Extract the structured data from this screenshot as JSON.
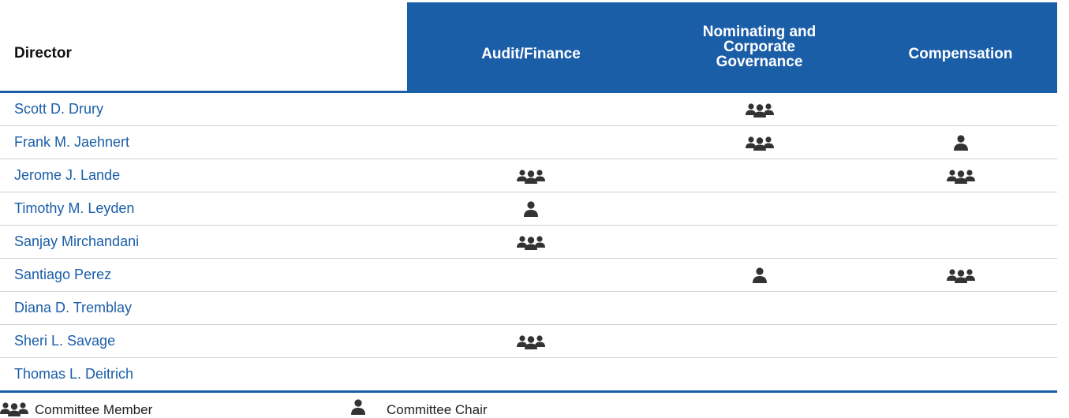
{
  "table": {
    "header": [
      "Director",
      "Audit/Finance",
      "Nominating and Corporate Governance",
      "Compensation"
    ],
    "rows": [
      "Scott D. Drury",
      "Frank M. Jaehnert",
      "Jerome J. Lande",
      "Timothy M. Leyden",
      "Sanjay Mirchandani",
      "Santiago Perez",
      "Diana D. Tremblay",
      "Sheri L. Savage",
      "Thomas L. Deitrich"
    ]
  },
  "legend": [
    "Committee Member",
    "Committee Chair"
  ]
}
